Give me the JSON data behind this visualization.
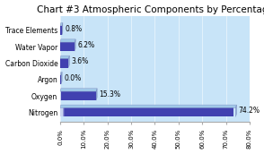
{
  "title": "Chart #3 Atmospheric Components by Percentage",
  "categories": [
    "Nitrogen",
    "Oxygen",
    "Argon",
    "Carbon Dioxide",
    "Water Vapor",
    "Trace Elements"
  ],
  "values": [
    74.2,
    15.3,
    0.0,
    3.6,
    6.2,
    0.8
  ],
  "labels": [
    "74.2%",
    "15.3%",
    "0.0%",
    "3.6%",
    "6.2%",
    "0.8%"
  ],
  "xlim": [
    0,
    80
  ],
  "xticks": [
    0,
    10,
    20,
    30,
    40,
    50,
    60,
    70,
    80
  ],
  "xticklabels": [
    "0.0%",
    "10.0%",
    "20.0%",
    "30.0%",
    "40.0%",
    "50.0%",
    "60.0%",
    "70.0%",
    "80.0%"
  ],
  "bar_color_start": "#c8d4f0",
  "bar_color_end": "#4040b0",
  "bar_top_color": "#a0c8e8",
  "bar_side_color": "#6080c0",
  "plot_bg_color": "#c8e4f8",
  "background_color": "#ffffff",
  "title_fontsize": 7.5,
  "label_fontsize": 5.5,
  "tick_fontsize": 5.0,
  "ylabel_fontsize": 5.5,
  "bar_depth": 0.18,
  "bar_height": 0.55
}
